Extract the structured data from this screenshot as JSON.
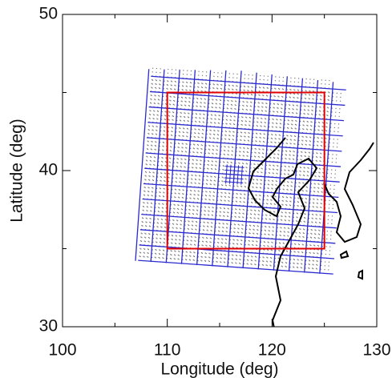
{
  "chart_data": {
    "type": "map",
    "xlabel": "Longitude (deg)",
    "ylabel": "Latitude (deg)",
    "xlim": [
      100,
      130
    ],
    "ylim": [
      30,
      50
    ],
    "xticks": [
      100,
      110,
      120,
      130
    ],
    "yticks": [
      30,
      40,
      50
    ],
    "xminorticks": [
      105,
      115,
      125
    ],
    "yminorticks": [
      35,
      45
    ],
    "boxes": [
      {
        "color": "#e00000",
        "x": [
          110,
          125
        ],
        "y": [
          35,
          45
        ]
      }
    ]
  }
}
